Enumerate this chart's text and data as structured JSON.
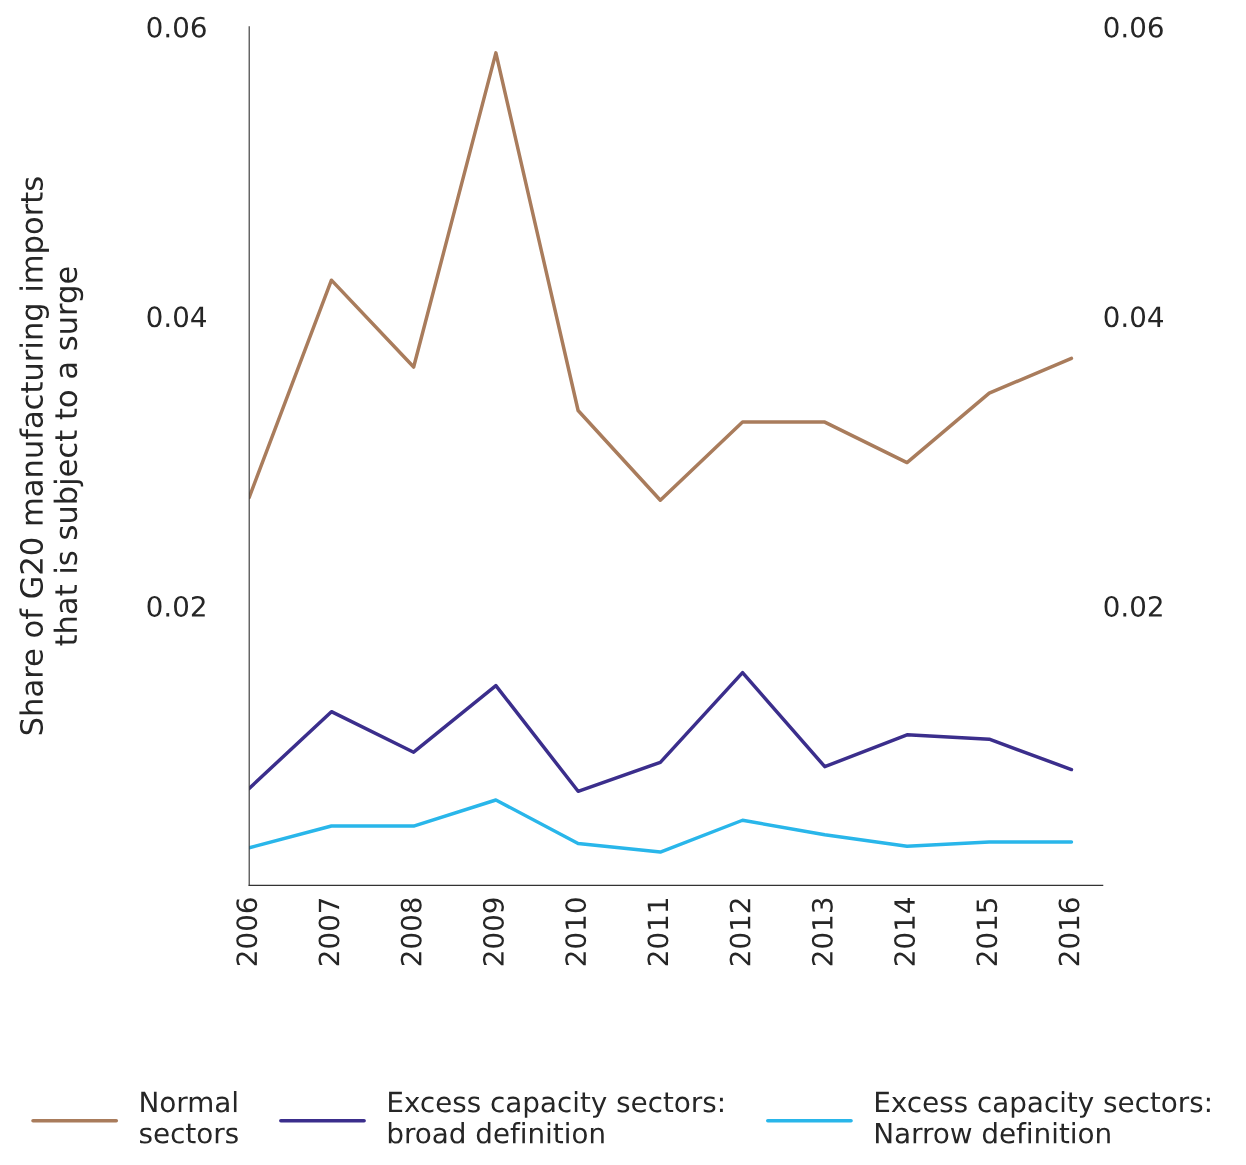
{
  "chart_data": {
    "type": "line",
    "ylabel": "Share of G20 manufacturing imports\nthat is subject to a surge",
    "categories": [
      "2006",
      "2007",
      "2008",
      "2009",
      "2010",
      "2011",
      "2012",
      "2013",
      "2014",
      "2015",
      "2016"
    ],
    "series": [
      {
        "name": "Normal\nsectors",
        "color": "#a97c5c",
        "values": [
          0.0275,
          0.0425,
          0.0365,
          0.0582,
          0.0335,
          0.0273,
          0.0327,
          0.0327,
          0.0299,
          0.0347,
          0.0371
        ]
      },
      {
        "name": "Excess capacity sectors:\nbroad definition",
        "color": "#3b2e8c",
        "values": [
          0.0074,
          0.0127,
          0.0099,
          0.0145,
          0.0072,
          0.0092,
          0.0154,
          0.0089,
          0.0111,
          0.0108,
          0.0087
        ]
      },
      {
        "name": "Excess capacity sectors:\nNarrow definition",
        "color": "#29b6ea",
        "values": [
          0.0033,
          0.0048,
          0.0048,
          0.0066,
          0.0036,
          0.003,
          0.0052,
          0.0042,
          0.0034,
          0.0037,
          0.0037
        ]
      }
    ],
    "ylim": [
      0.0007,
      0.06
    ],
    "yticks": [
      0.02,
      0.04,
      0.06
    ],
    "y2lim": [
      0.0007,
      0.06
    ],
    "y2ticks": [
      0.02,
      0.04,
      0.06
    ],
    "grid": false,
    "legend": "bottom",
    "marker": "none",
    "line_style": "solid"
  }
}
